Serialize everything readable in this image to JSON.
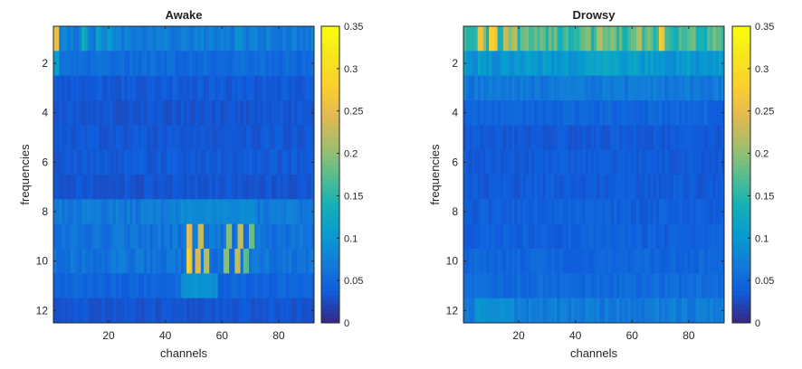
{
  "chart_data": [
    {
      "type": "heatmap",
      "title": "Awake",
      "xlabel": "channels",
      "ylabel": "frequencies",
      "x_ticks": [
        20,
        40,
        60,
        80
      ],
      "y_ticks": [
        2,
        4,
        6,
        8,
        10,
        12
      ],
      "x_range": [
        0.5,
        92.5
      ],
      "y_range": [
        0.5,
        12.5
      ],
      "n_channels": 92,
      "n_frequencies": 12,
      "colorbar": {
        "min": 0,
        "max": 0.35,
        "ticks": [
          0,
          0.05,
          0.1,
          0.15,
          0.2,
          0.25,
          0.3,
          0.35
        ],
        "tick_labels": [
          "0",
          "0.05",
          "0.1",
          "0.15",
          "0.2",
          "0.25",
          "0.3",
          "0.35"
        ]
      },
      "row_base_values": [
        0.07,
        0.05,
        0.035,
        0.03,
        0.032,
        0.035,
        0.03,
        0.065,
        0.06,
        0.06,
        0.045,
        0.03
      ],
      "highlights": [
        {
          "frequency": 1,
          "channels": [
            1,
            2
          ],
          "value": 0.26
        },
        {
          "frequency": 1,
          "channels": [
            11,
            12
          ],
          "value": 0.14
        },
        {
          "frequency": 1,
          "channels": [
            16,
            17
          ],
          "value": 0.12
        },
        {
          "frequency": 1,
          "channels": [
            20,
            21
          ],
          "value": 0.11
        },
        {
          "frequency": 1,
          "channels": [
            65,
            66
          ],
          "value": 0.1
        },
        {
          "frequency": 2,
          "channels": [
            1,
            2
          ],
          "value": 0.12
        },
        {
          "frequency": 8,
          "channels": [
            46,
            72
          ],
          "value": 0.09
        },
        {
          "frequency": 9,
          "channels": [
            48,
            49
          ],
          "value": 0.28
        },
        {
          "frequency": 9,
          "channels": [
            52,
            53
          ],
          "value": 0.26
        },
        {
          "frequency": 9,
          "channels": [
            62,
            63
          ],
          "value": 0.22
        },
        {
          "frequency": 9,
          "channels": [
            66,
            67
          ],
          "value": 0.25
        },
        {
          "frequency": 9,
          "channels": [
            70,
            71
          ],
          "value": 0.2
        },
        {
          "frequency": 10,
          "channels": [
            48,
            49
          ],
          "value": 0.3
        },
        {
          "frequency": 10,
          "channels": [
            51,
            52
          ],
          "value": 0.28
        },
        {
          "frequency": 10,
          "channels": [
            54,
            55
          ],
          "value": 0.24
        },
        {
          "frequency": 10,
          "channels": [
            61,
            62
          ],
          "value": 0.22
        },
        {
          "frequency": 10,
          "channels": [
            65,
            66
          ],
          "value": 0.25
        },
        {
          "frequency": 10,
          "channels": [
            68,
            69
          ],
          "value": 0.18
        },
        {
          "frequency": 11,
          "channels": [
            46,
            58
          ],
          "value": 0.1
        }
      ]
    },
    {
      "type": "heatmap",
      "title": "Drowsy",
      "xlabel": "channels",
      "ylabel": "frequencies",
      "x_ticks": [
        20,
        40,
        60,
        80
      ],
      "y_ticks": [
        2,
        4,
        6,
        8,
        10,
        12
      ],
      "x_range": [
        0.5,
        92.5
      ],
      "y_range": [
        0.5,
        12.5
      ],
      "n_channels": 92,
      "n_frequencies": 12,
      "colorbar": {
        "min": 0,
        "max": 0.35,
        "ticks": [
          0,
          0.05,
          0.1,
          0.15,
          0.2,
          0.25,
          0.3,
          0.35
        ],
        "tick_labels": [
          "0",
          "0.05",
          "0.1",
          "0.15",
          "0.2",
          "0.25",
          "0.3",
          "0.35"
        ]
      },
      "row_base_values": [
        0.16,
        0.1,
        0.065,
        0.045,
        0.035,
        0.035,
        0.035,
        0.04,
        0.04,
        0.045,
        0.05,
        0.07
      ],
      "highlights": [
        {
          "frequency": 1,
          "channels": [
            6,
            7
          ],
          "value": 0.27
        },
        {
          "frequency": 1,
          "channels": [
            10,
            12
          ],
          "value": 0.3
        },
        {
          "frequency": 1,
          "channels": [
            15,
            16
          ],
          "value": 0.26
        },
        {
          "frequency": 1,
          "channels": [
            18,
            19
          ],
          "value": 0.24
        },
        {
          "frequency": 1,
          "channels": [
            48,
            49
          ],
          "value": 0.22
        },
        {
          "frequency": 1,
          "channels": [
            52,
            53
          ],
          "value": 0.2
        },
        {
          "frequency": 1,
          "channels": [
            62,
            63
          ],
          "value": 0.23
        },
        {
          "frequency": 1,
          "channels": [
            70,
            71
          ],
          "value": 0.28
        },
        {
          "frequency": 1,
          "channels": [
            80,
            81
          ],
          "value": 0.2
        },
        {
          "frequency": 2,
          "channels": [
            45,
            55
          ],
          "value": 0.13
        },
        {
          "frequency": 12,
          "channels": [
            5,
            18
          ],
          "value": 0.1
        }
      ]
    }
  ]
}
